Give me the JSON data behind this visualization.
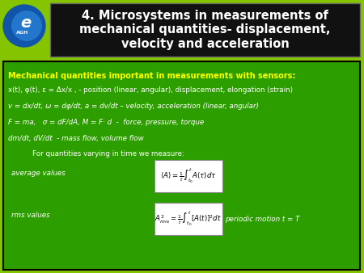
{
  "bg_color": "#85c400",
  "title_bg_color": "#111111",
  "title_text_color": "#ffffff",
  "title": "4. Microsystems in measurements of\nmechanical quantities- displacement,\nvelocity and acceleration",
  "title_fontsize": 10.5,
  "content_bg_color": "#2d9e00",
  "content_border_color": "#000000",
  "bold_line": "Mechanical quantities important in measurements with sensors:",
  "bold_line_color": "#ffff00",
  "line1": "x(t), φ(t), ε = Δx/x , - position (linear, angular), displacement, elongation (strain)",
  "line2": "v = dx/dt, ω = dφ/dt, a = dv/dt – velocity, acceleration (linear, angular)",
  "line3": "F = ma,   σ = dF/dA, M = F· d  -  force, pressure, torque",
  "line4": "dm/dt, dV/dt  - mass flow, volume flow",
  "indented_line": "For quantities varying in time we measure:",
  "avg_label": "average values",
  "rms_label": "rms values",
  "rms_suffix": "periodic motion t = T",
  "formula_bg": "#ffffff",
  "label_color": "#000000",
  "logo_outer_color": "#1155aa",
  "logo_inner_color": "#ffffff",
  "text_white": "#ffffff"
}
